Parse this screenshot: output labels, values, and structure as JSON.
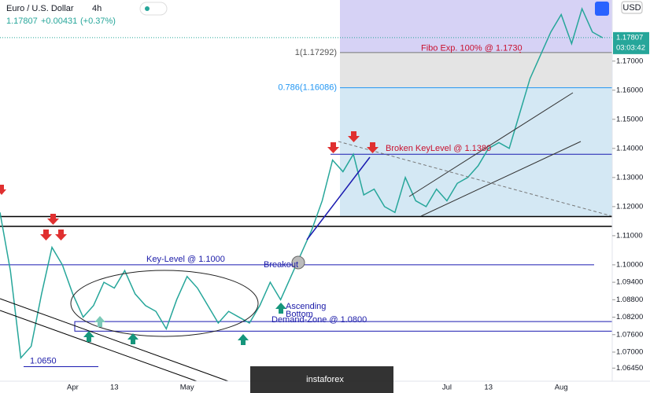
{
  "chart_data": {
    "type": "line",
    "symbol": "Euro / U.S. Dollar",
    "interval": "4h",
    "last_price": 1.17807,
    "change": {
      "value": 0.00431,
      "label": "+0.00431"
    },
    "change_pct": {
      "value": 0.37,
      "label": "(+0.37%)"
    },
    "countdown": "03:03:42",
    "currency": "USD",
    "watermark": "instaforex",
    "categories": [
      null,
      null,
      null,
      null,
      null,
      null,
      null,
      "Apr",
      null,
      null,
      null,
      "13",
      null,
      null,
      null,
      null,
      null,
      null,
      "May",
      null,
      null,
      null,
      null,
      null,
      null,
      null,
      null,
      null,
      null,
      null,
      null,
      null,
      null,
      null,
      null,
      null,
      null,
      null,
      null,
      null,
      null,
      null,
      null,
      "Jul",
      null,
      null,
      null,
      "13",
      null,
      null,
      null,
      null,
      null,
      null,
      "Aug",
      null,
      null,
      null,
      null
    ],
    "series": [
      {
        "name": "EURUSD",
        "color": "#26a69a",
        "values": [
          1.118,
          1.098,
          1.068,
          1.072,
          1.09,
          1.106,
          1.1,
          1.09,
          1.082,
          1.086,
          1.094,
          1.092,
          1.098,
          1.09,
          1.086,
          1.084,
          1.078,
          1.088,
          1.096,
          1.092,
          1.086,
          1.08,
          1.084,
          1.082,
          1.08,
          1.086,
          1.094,
          1.088,
          1.096,
          1.104,
          1.112,
          1.122,
          1.136,
          1.132,
          1.138,
          1.124,
          1.126,
          1.12,
          1.118,
          1.13,
          1.122,
          1.12,
          1.126,
          1.122,
          1.128,
          1.13,
          1.134,
          1.14,
          1.142,
          1.14,
          1.152,
          1.164,
          1.172,
          1.18,
          1.186,
          1.176,
          1.188,
          1.18,
          1.178
        ]
      }
    ],
    "ylim": [
      1.06,
      1.191
    ],
    "yticks": [
      {
        "value": 1.0645,
        "label": "1.06450"
      },
      {
        "value": 1.07,
        "label": "1.07000"
      },
      {
        "value": 1.076,
        "label": "1.07600"
      },
      {
        "value": 1.082,
        "label": "1.08200"
      },
      {
        "value": 1.088,
        "label": "1.08800"
      },
      {
        "value": 1.094,
        "label": "1.09400"
      },
      {
        "value": 1.1,
        "label": "1.10000"
      },
      {
        "value": 1.11,
        "label": "1.11000"
      },
      {
        "value": 1.12,
        "label": "1.12000"
      },
      {
        "value": 1.13,
        "label": "1.13000"
      },
      {
        "value": 1.14,
        "label": "1.14000"
      },
      {
        "value": 1.15,
        "label": "1.15000"
      },
      {
        "value": 1.16,
        "label": "1.16000"
      },
      {
        "value": 1.17,
        "label": "1.17000"
      }
    ],
    "fib_levels": [
      {
        "label": "1(1.17292)",
        "value": 1.17292
      },
      {
        "label": "0.786(1.16086)",
        "value": 1.16086
      },
      {
        "value": 1.1166
      }
    ],
    "support_lines": [
      1.1166,
      1.1132
    ],
    "levels": [
      {
        "label": "Fibo Exp. 100% @ 1.1730",
        "value": 1.173
      },
      {
        "label": "Broken KeyLevel @ 1.1380",
        "value": 1.138
      },
      {
        "label": "Key-Level @ 1.1000",
        "value": 1.1
      },
      {
        "label": "1.0650",
        "value": 1.065
      }
    ],
    "demand_zone": {
      "label": "Demand-Zone @ 1.0800",
      "values": [
        1.0805,
        1.0772
      ]
    },
    "notes": [
      "Breakout",
      "Ascending",
      "Bottom"
    ]
  }
}
